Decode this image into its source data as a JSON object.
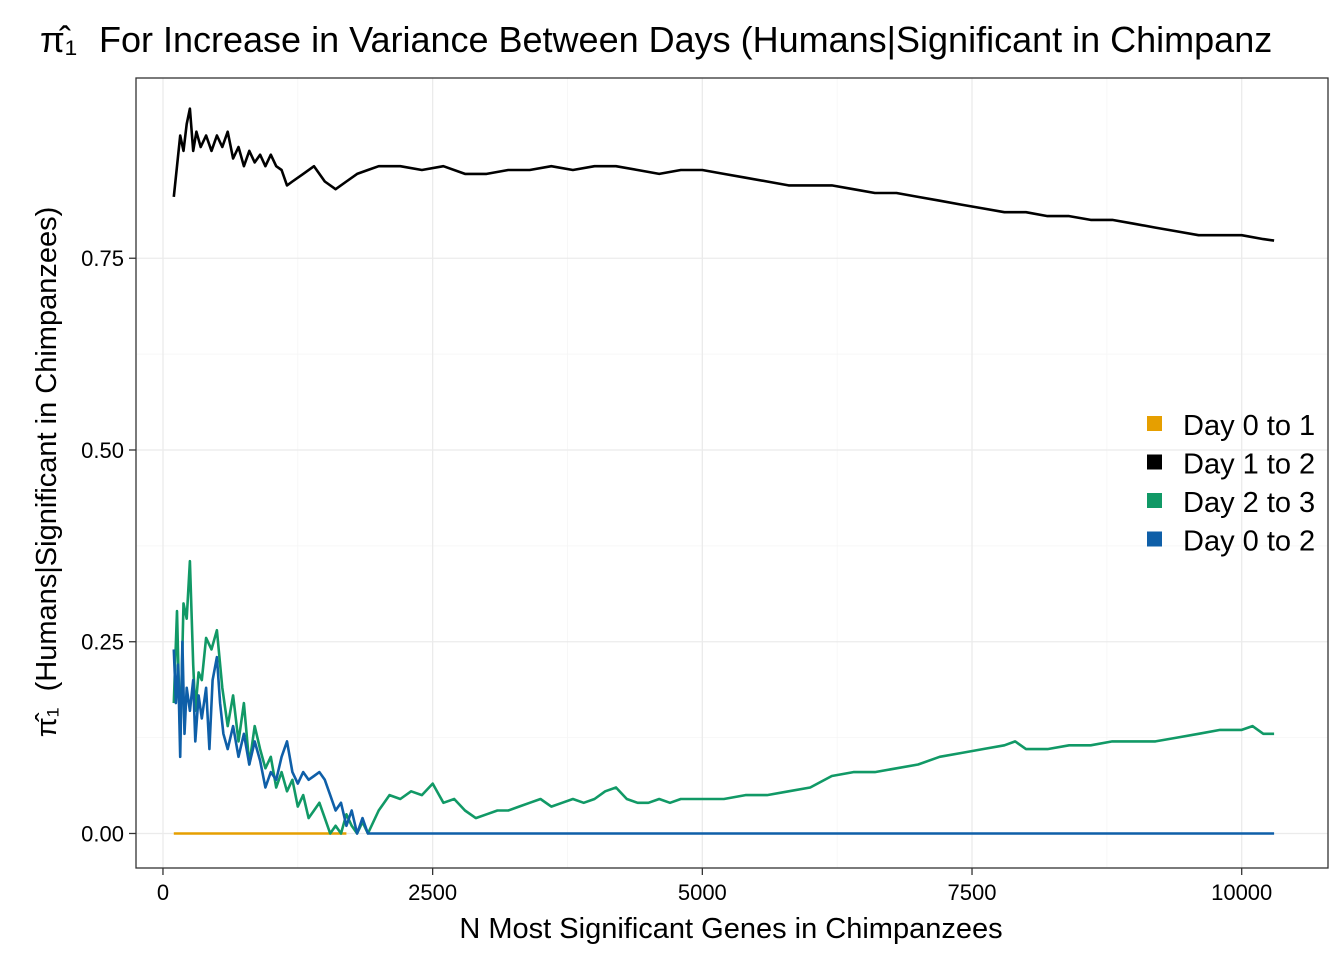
{
  "chart_data": {
    "type": "line",
    "title": "For Increase in Variance Between Days (Humans|Significant in Chimpanz",
    "title_symbol": "π̂₁",
    "xlabel": "N Most Significant Genes in Chimpanzees",
    "ylabel_suffix": "(Humans|Significant in Chimpanzees)",
    "ylabel_symbol": "π̂₁",
    "xlim": [
      -250,
      10800
    ],
    "ylim": [
      -0.045,
      0.985
    ],
    "x_ticks": [
      0,
      2500,
      5000,
      7500,
      10000
    ],
    "x_tick_labels": [
      "0",
      "2500",
      "5000",
      "7500",
      "10000"
    ],
    "y_ticks": [
      0.0,
      0.25,
      0.5,
      0.75
    ],
    "y_tick_labels": [
      "0.00",
      "0.25",
      "0.50",
      "0.75"
    ],
    "grid": true,
    "legend_position": "right",
    "series": [
      {
        "name": "Day 0 to 1",
        "color": "#E69F00",
        "points": [
          [
            100,
            0.0
          ],
          [
            1700,
            0.0
          ]
        ]
      },
      {
        "name": "Day 1 to 2",
        "color": "#000000",
        "points": [
          [
            100,
            0.83
          ],
          [
            130,
            0.87
          ],
          [
            160,
            0.91
          ],
          [
            190,
            0.89
          ],
          [
            220,
            0.925
          ],
          [
            250,
            0.945
          ],
          [
            280,
            0.89
          ],
          [
            310,
            0.915
          ],
          [
            350,
            0.895
          ],
          [
            400,
            0.91
          ],
          [
            450,
            0.89
          ],
          [
            500,
            0.91
          ],
          [
            550,
            0.895
          ],
          [
            600,
            0.915
          ],
          [
            650,
            0.88
          ],
          [
            700,
            0.895
          ],
          [
            750,
            0.87
          ],
          [
            800,
            0.89
          ],
          [
            850,
            0.875
          ],
          [
            900,
            0.885
          ],
          [
            950,
            0.87
          ],
          [
            1000,
            0.885
          ],
          [
            1050,
            0.87
          ],
          [
            1100,
            0.865
          ],
          [
            1150,
            0.845
          ],
          [
            1200,
            0.85
          ],
          [
            1300,
            0.86
          ],
          [
            1400,
            0.87
          ],
          [
            1500,
            0.85
          ],
          [
            1600,
            0.84
          ],
          [
            1700,
            0.85
          ],
          [
            1800,
            0.86
          ],
          [
            1900,
            0.865
          ],
          [
            2000,
            0.87
          ],
          [
            2200,
            0.87
          ],
          [
            2400,
            0.865
          ],
          [
            2600,
            0.87
          ],
          [
            2800,
            0.86
          ],
          [
            3000,
            0.86
          ],
          [
            3200,
            0.865
          ],
          [
            3400,
            0.865
          ],
          [
            3600,
            0.87
          ],
          [
            3800,
            0.865
          ],
          [
            4000,
            0.87
          ],
          [
            4200,
            0.87
          ],
          [
            4400,
            0.865
          ],
          [
            4600,
            0.86
          ],
          [
            4800,
            0.865
          ],
          [
            5000,
            0.865
          ],
          [
            5200,
            0.86
          ],
          [
            5400,
            0.855
          ],
          [
            5600,
            0.85
          ],
          [
            5800,
            0.845
          ],
          [
            6000,
            0.845
          ],
          [
            6200,
            0.845
          ],
          [
            6400,
            0.84
          ],
          [
            6600,
            0.835
          ],
          [
            6800,
            0.835
          ],
          [
            7000,
            0.83
          ],
          [
            7200,
            0.825
          ],
          [
            7400,
            0.82
          ],
          [
            7600,
            0.815
          ],
          [
            7800,
            0.81
          ],
          [
            8000,
            0.81
          ],
          [
            8200,
            0.805
          ],
          [
            8400,
            0.805
          ],
          [
            8600,
            0.8
          ],
          [
            8800,
            0.8
          ],
          [
            9000,
            0.795
          ],
          [
            9200,
            0.79
          ],
          [
            9400,
            0.785
          ],
          [
            9600,
            0.78
          ],
          [
            9800,
            0.78
          ],
          [
            10000,
            0.78
          ],
          [
            10200,
            0.775
          ],
          [
            10300,
            0.773
          ]
        ]
      },
      {
        "name": "Day 2 to 3",
        "color": "#119966",
        "points": [
          [
            100,
            0.17
          ],
          [
            130,
            0.29
          ],
          [
            160,
            0.12
          ],
          [
            190,
            0.3
          ],
          [
            220,
            0.28
          ],
          [
            250,
            0.355
          ],
          [
            280,
            0.22
          ],
          [
            300,
            0.16
          ],
          [
            330,
            0.21
          ],
          [
            360,
            0.2
          ],
          [
            400,
            0.255
          ],
          [
            450,
            0.24
          ],
          [
            500,
            0.265
          ],
          [
            550,
            0.19
          ],
          [
            600,
            0.14
          ],
          [
            650,
            0.18
          ],
          [
            700,
            0.12
          ],
          [
            750,
            0.17
          ],
          [
            800,
            0.09
          ],
          [
            850,
            0.14
          ],
          [
            900,
            0.11
          ],
          [
            950,
            0.085
          ],
          [
            1000,
            0.1
          ],
          [
            1050,
            0.06
          ],
          [
            1100,
            0.08
          ],
          [
            1150,
            0.055
          ],
          [
            1200,
            0.07
          ],
          [
            1250,
            0.035
          ],
          [
            1300,
            0.05
          ],
          [
            1350,
            0.02
          ],
          [
            1400,
            0.03
          ],
          [
            1450,
            0.04
          ],
          [
            1500,
            0.02
          ],
          [
            1550,
            0.0
          ],
          [
            1600,
            0.01
          ],
          [
            1650,
            0.0
          ],
          [
            1700,
            0.025
          ],
          [
            1750,
            0.01
          ],
          [
            1800,
            0.0
          ],
          [
            1850,
            0.015
          ],
          [
            1900,
            0.0
          ],
          [
            2000,
            0.03
          ],
          [
            2100,
            0.05
          ],
          [
            2200,
            0.045
          ],
          [
            2300,
            0.055
          ],
          [
            2400,
            0.05
          ],
          [
            2500,
            0.065
          ],
          [
            2600,
            0.04
          ],
          [
            2700,
            0.045
          ],
          [
            2800,
            0.03
          ],
          [
            2900,
            0.02
          ],
          [
            3000,
            0.025
          ],
          [
            3100,
            0.03
          ],
          [
            3200,
            0.03
          ],
          [
            3300,
            0.035
          ],
          [
            3400,
            0.04
          ],
          [
            3500,
            0.045
          ],
          [
            3600,
            0.035
          ],
          [
            3700,
            0.04
          ],
          [
            3800,
            0.045
          ],
          [
            3900,
            0.04
          ],
          [
            4000,
            0.045
          ],
          [
            4100,
            0.055
          ],
          [
            4200,
            0.06
          ],
          [
            4300,
            0.045
          ],
          [
            4400,
            0.04
          ],
          [
            4500,
            0.04
          ],
          [
            4600,
            0.045
          ],
          [
            4700,
            0.04
          ],
          [
            4800,
            0.045
          ],
          [
            5000,
            0.045
          ],
          [
            5200,
            0.045
          ],
          [
            5400,
            0.05
          ],
          [
            5600,
            0.05
          ],
          [
            5800,
            0.055
          ],
          [
            6000,
            0.06
          ],
          [
            6200,
            0.075
          ],
          [
            6400,
            0.08
          ],
          [
            6600,
            0.08
          ],
          [
            6800,
            0.085
          ],
          [
            7000,
            0.09
          ],
          [
            7200,
            0.1
          ],
          [
            7400,
            0.105
          ],
          [
            7600,
            0.11
          ],
          [
            7800,
            0.115
          ],
          [
            7900,
            0.12
          ],
          [
            8000,
            0.11
          ],
          [
            8200,
            0.11
          ],
          [
            8400,
            0.115
          ],
          [
            8600,
            0.115
          ],
          [
            8800,
            0.12
          ],
          [
            9000,
            0.12
          ],
          [
            9200,
            0.12
          ],
          [
            9400,
            0.125
          ],
          [
            9600,
            0.13
          ],
          [
            9800,
            0.135
          ],
          [
            10000,
            0.135
          ],
          [
            10100,
            0.14
          ],
          [
            10200,
            0.13
          ],
          [
            10300,
            0.13
          ]
        ]
      },
      {
        "name": "Day 0 to 2",
        "color": "#0F5FA8",
        "points": [
          [
            100,
            0.24
          ],
          [
            120,
            0.17
          ],
          [
            140,
            0.22
          ],
          [
            160,
            0.1
          ],
          [
            180,
            0.25
          ],
          [
            200,
            0.13
          ],
          [
            220,
            0.19
          ],
          [
            250,
            0.16
          ],
          [
            280,
            0.2
          ],
          [
            300,
            0.12
          ],
          [
            330,
            0.18
          ],
          [
            360,
            0.15
          ],
          [
            400,
            0.19
          ],
          [
            430,
            0.11
          ],
          [
            460,
            0.2
          ],
          [
            500,
            0.23
          ],
          [
            530,
            0.17
          ],
          [
            560,
            0.13
          ],
          [
            600,
            0.11
          ],
          [
            650,
            0.14
          ],
          [
            700,
            0.1
          ],
          [
            750,
            0.13
          ],
          [
            800,
            0.09
          ],
          [
            850,
            0.12
          ],
          [
            900,
            0.095
          ],
          [
            950,
            0.06
          ],
          [
            1000,
            0.08
          ],
          [
            1050,
            0.07
          ],
          [
            1100,
            0.1
          ],
          [
            1150,
            0.12
          ],
          [
            1200,
            0.08
          ],
          [
            1250,
            0.065
          ],
          [
            1300,
            0.08
          ],
          [
            1350,
            0.07
          ],
          [
            1400,
            0.075
          ],
          [
            1450,
            0.08
          ],
          [
            1500,
            0.07
          ],
          [
            1550,
            0.05
          ],
          [
            1600,
            0.03
          ],
          [
            1650,
            0.04
          ],
          [
            1700,
            0.01
          ],
          [
            1750,
            0.03
          ],
          [
            1800,
            0.0
          ],
          [
            1850,
            0.02
          ],
          [
            1900,
            0.0
          ],
          [
            10300,
            0.0
          ]
        ]
      }
    ]
  }
}
